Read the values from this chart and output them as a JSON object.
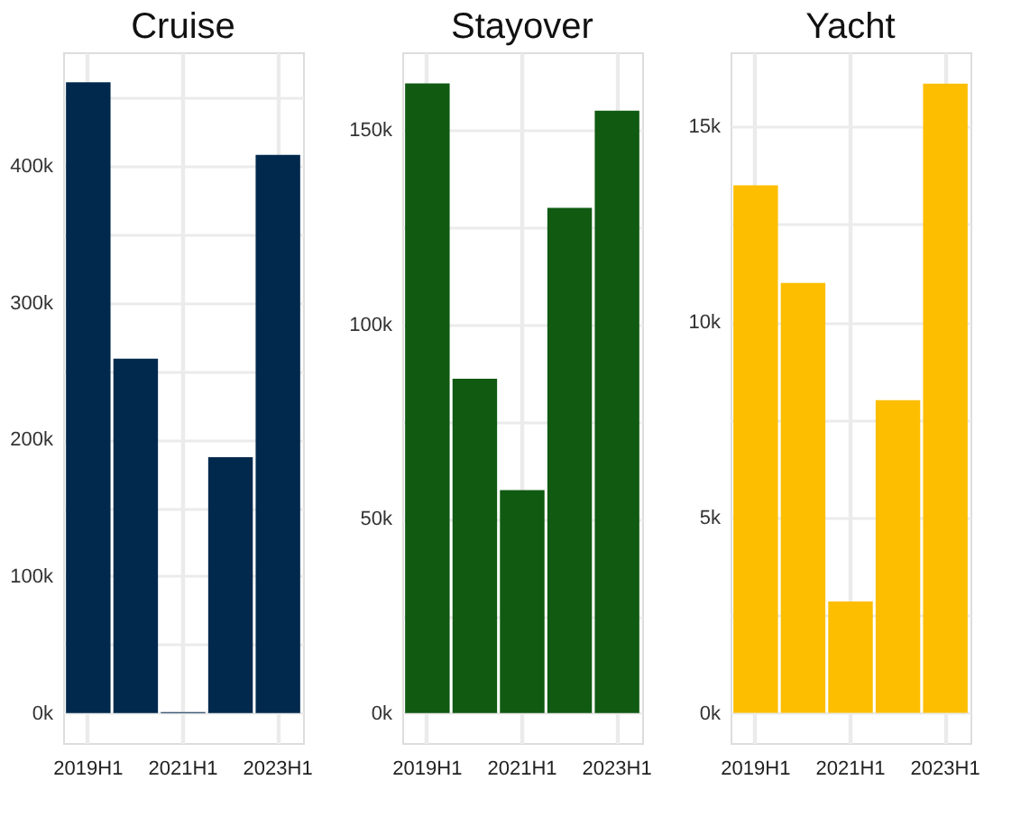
{
  "chart_data": [
    {
      "type": "bar",
      "title": "Cruise",
      "categories": [
        "2019H1",
        null,
        "2021H1",
        null,
        "2023H1"
      ],
      "values": [
        461000,
        259000,
        500,
        187000,
        408000
      ],
      "color": "#00294d",
      "ylim": [
        -22000,
        483000
      ],
      "yticks": [
        {
          "value": 0,
          "label": "0k"
        },
        {
          "value": 50000,
          "label": null
        },
        {
          "value": 100000,
          "label": "100k"
        },
        {
          "value": 150000,
          "label": null
        },
        {
          "value": 200000,
          "label": "200k"
        },
        {
          "value": 250000,
          "label": null
        },
        {
          "value": 300000,
          "label": "300k"
        },
        {
          "value": 350000,
          "label": null
        },
        {
          "value": 400000,
          "label": "400k"
        },
        {
          "value": 450000,
          "label": null
        }
      ],
      "grid": true
    },
    {
      "type": "bar",
      "title": "Stayover",
      "categories": [
        "2019H1",
        null,
        "2021H1",
        null,
        "2023H1"
      ],
      "values": [
        162000,
        86000,
        57400,
        130000,
        155000
      ],
      "color": "#105a12",
      "ylim": [
        -7700,
        170000
      ],
      "yticks": [
        {
          "value": 0,
          "label": "0k"
        },
        {
          "value": 25000,
          "label": null
        },
        {
          "value": 50000,
          "label": "50k"
        },
        {
          "value": 75000,
          "label": null
        },
        {
          "value": 100000,
          "label": "100k"
        },
        {
          "value": 125000,
          "label": null
        },
        {
          "value": 150000,
          "label": "150k"
        }
      ],
      "grid": true
    },
    {
      "type": "bar",
      "title": "Yacht",
      "categories": [
        "2019H1",
        null,
        "2021H1",
        null,
        "2023H1"
      ],
      "values": [
        13500,
        11000,
        2850,
        8000,
        16100
      ],
      "color": "#fdbe00",
      "ylim": [
        -770,
        16900
      ],
      "yticks": [
        {
          "value": 0,
          "label": "0k"
        },
        {
          "value": 2500,
          "label": null
        },
        {
          "value": 5000,
          "label": "5k"
        },
        {
          "value": 7500,
          "label": null
        },
        {
          "value": 10000,
          "label": "10k"
        },
        {
          "value": 12500,
          "label": null
        },
        {
          "value": 15000,
          "label": "15k"
        }
      ],
      "grid": true
    }
  ]
}
